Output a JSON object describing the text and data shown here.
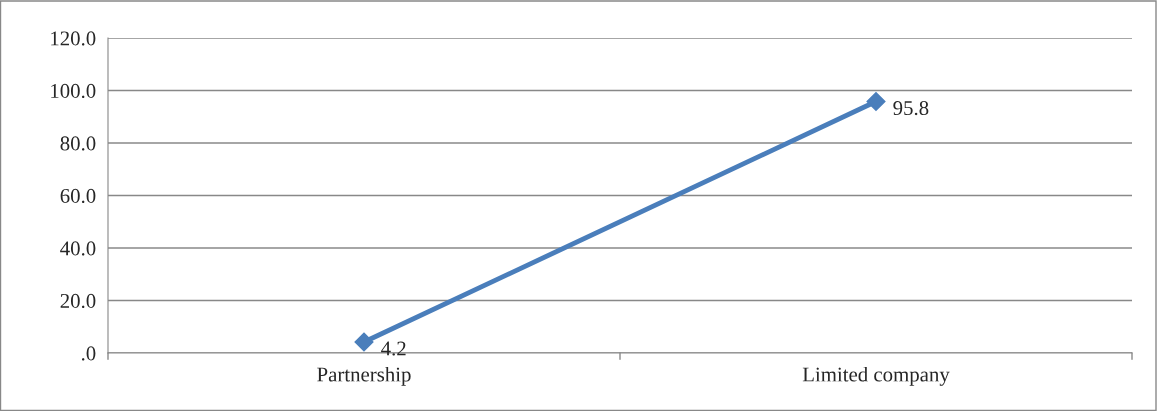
{
  "chart_data": {
    "type": "line",
    "categories": [
      "Partnership",
      "Limited company"
    ],
    "series": [
      {
        "color": "#4a7ebb",
        "values": [
          4.2,
          95.8
        ]
      }
    ],
    "ylim": [
      0,
      120
    ],
    "yticks": [
      {
        "value": 0,
        "label": ".0"
      },
      {
        "value": 20,
        "label": "20.0"
      },
      {
        "value": 40,
        "label": "40.0"
      },
      {
        "value": 60,
        "label": "60.0"
      },
      {
        "value": 80,
        "label": "80.0"
      },
      {
        "value": 100,
        "label": "100.0"
      },
      {
        "value": 120,
        "label": "120.0"
      }
    ],
    "grid": "y",
    "marker": "diamond",
    "line_style": "solid",
    "data_labels": true,
    "legend": false
  }
}
